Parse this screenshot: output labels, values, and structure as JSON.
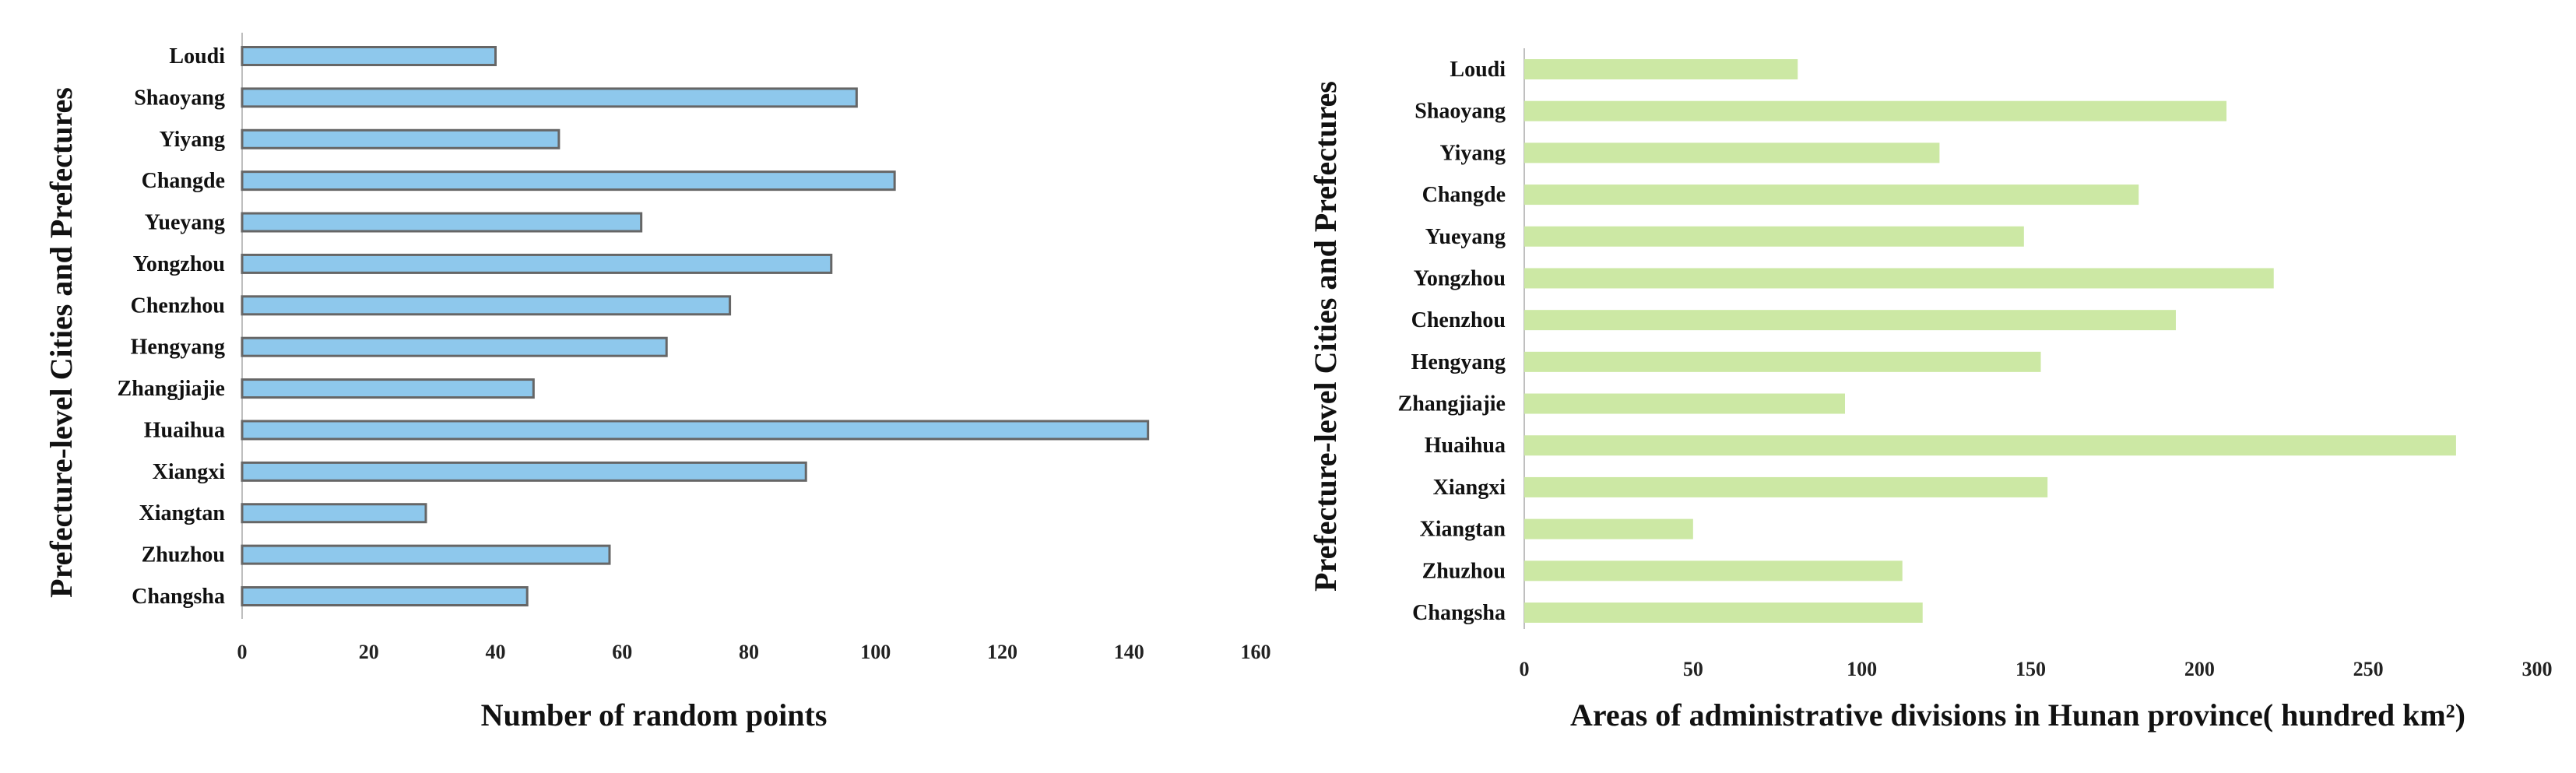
{
  "chart_data": [
    {
      "type": "bar",
      "orientation": "horizontal",
      "categories": [
        "Changsha",
        "Zhuzhou",
        "Xiangtan",
        "Xiangxi",
        "Huaihua",
        "Zhangjiajie",
        "Hengyang",
        "Chenzhou",
        "Yongzhou",
        "Yueyang",
        "Changde",
        "Yiyang",
        "Shaoyang",
        "Loudi"
      ],
      "values": [
        45,
        58,
        29,
        89,
        143,
        46,
        67,
        77,
        93,
        63,
        103,
        50,
        97,
        40
      ],
      "xlabel": "Number of random points",
      "ylabel": "Prefecture-level Cities and Prefectures",
      "xlim": [
        0,
        160
      ],
      "xticks": [
        "0",
        "20",
        "40",
        "60",
        "80",
        "100",
        "120",
        "140",
        "160"
      ],
      "color": "#8ec8ec",
      "edge_color": "#666666",
      "grid": false
    },
    {
      "type": "bar",
      "orientation": "horizontal",
      "categories": [
        "Changsha",
        "Zhuzhou",
        "Xiangtan",
        "Xiangxi",
        "Huaihua",
        "Zhangjiajie",
        "Hengyang",
        "Chenzhou",
        "Yongzhou",
        "Yueyang",
        "Changde",
        "Yiyang",
        "Shaoyang",
        "Loudi"
      ],
      "values": [
        118,
        112,
        50,
        155,
        276,
        95,
        153,
        193,
        222,
        148,
        182,
        123,
        208,
        81
      ],
      "xlabel": "Areas of  administrative divisions in Hunan province( hundred km²)",
      "ylabel": "Prefecture-level Cities and Prefectures",
      "xlim": [
        0,
        300
      ],
      "xticks": [
        "0",
        "50",
        "100",
        "150",
        "200",
        "250",
        "300"
      ],
      "color": "#cce8a4",
      "edge_color": "none",
      "grid": false
    }
  ]
}
